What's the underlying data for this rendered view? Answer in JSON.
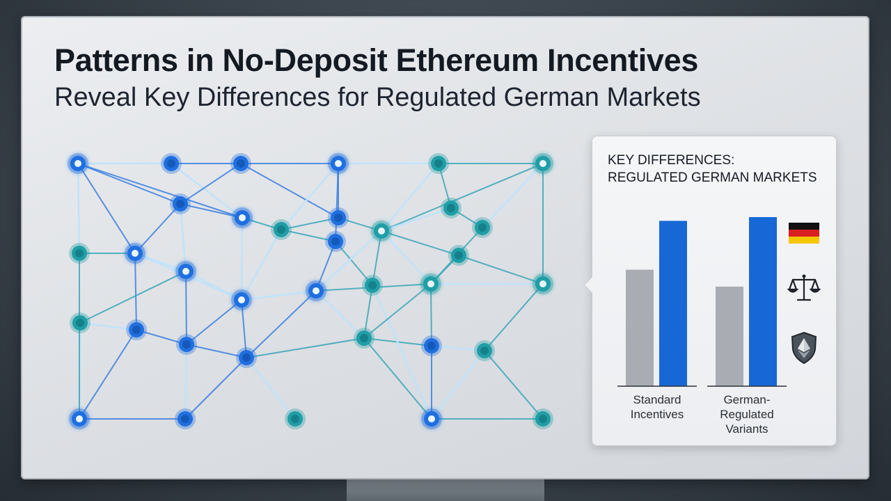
{
  "title": "Patterns in No-Deposit Ethereum Incentives",
  "subtitle": "Reveal Key Differences for Regulated German Markets",
  "panel": {
    "title_line1": "KEY DIFFERENCES:",
    "title_line2": "REGULATED GERMAN MARKETS"
  },
  "icons": [
    "germany-flag-icon",
    "scales-of-justice-icon",
    "ethereum-shield-icon"
  ],
  "colors": {
    "gray_bar": "#a9adb3",
    "blue_bar": "#1768d6",
    "node_blue": "#1f6fe0",
    "node_teal": "#1f9ea6"
  },
  "chart_data": {
    "type": "bar",
    "categories": [
      "Standard Incentives",
      "German-Regulated Variants"
    ],
    "category_lines": [
      [
        "Standard",
        "Incentives"
      ],
      [
        "German-",
        "Regulated",
        "Variants"
      ]
    ],
    "series": [
      {
        "values": [
          62,
          53
        ]
      },
      {
        "values": [
          88,
          90
        ]
      }
    ],
    "ylim": [
      0,
      100
    ],
    "grid": false
  }
}
